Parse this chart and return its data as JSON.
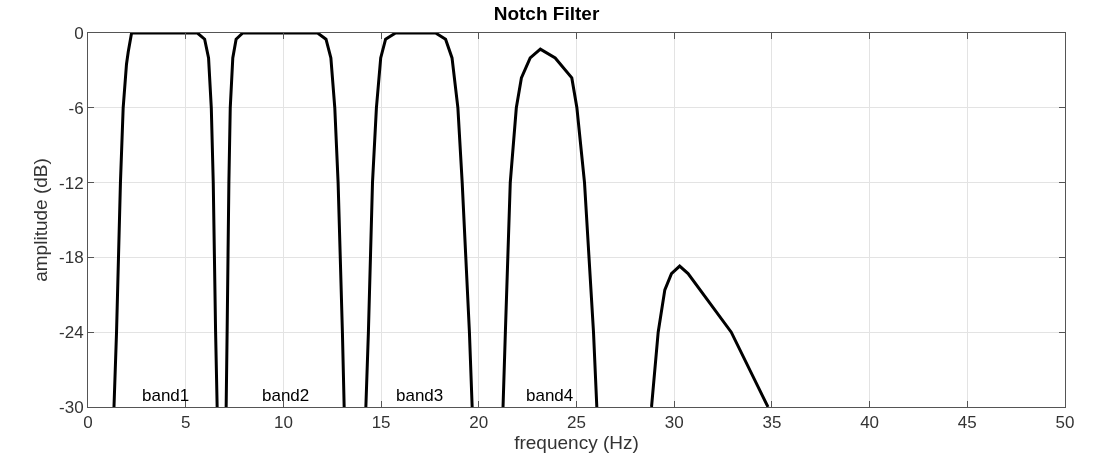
{
  "chart_data": {
    "type": "line",
    "title": "Notch Filter",
    "xlabel": "frequency (Hz)",
    "ylabel": "amplitude (dB)",
    "xlim": [
      0,
      50
    ],
    "xticks": [
      0,
      5,
      10,
      15,
      20,
      25,
      30,
      35,
      40,
      45,
      50
    ],
    "ylim": [
      -30,
      0
    ],
    "yticks": [
      -30,
      -24,
      -18,
      -12,
      -6,
      0
    ],
    "grid": true,
    "marker": "none",
    "line_style": "solid",
    "series": [
      {
        "color": "#000000",
        "x": [
          1.33,
          1.46,
          1.66,
          1.8,
          1.97,
          2.06,
          2.23,
          2.4,
          3.0,
          4.0,
          5.0,
          5.6,
          5.97,
          6.17,
          6.31,
          6.41,
          6.53,
          6.61
        ],
        "values": [
          -30,
          -24,
          -12,
          -6,
          -2.5,
          -1.5,
          0,
          0,
          0,
          0,
          0,
          0,
          -0.5,
          -2,
          -6,
          -12,
          -24,
          -30
        ]
      },
      {
        "color": "#000000",
        "x": [
          7.07,
          7.12,
          7.21,
          7.28,
          7.41,
          7.58,
          7.92,
          9.0,
          10.0,
          11.0,
          11.75,
          12.18,
          12.43,
          12.63,
          12.8,
          13.02,
          13.11
        ],
        "values": [
          -30,
          -24,
          -12,
          -6,
          -2,
          -0.5,
          0,
          0,
          0,
          0,
          0,
          -0.5,
          -2,
          -6,
          -12,
          -24,
          -30
        ]
      },
      {
        "color": "#000000",
        "x": [
          14.22,
          14.35,
          14.56,
          14.76,
          14.98,
          15.23,
          15.74,
          16.5,
          17.0,
          17.79,
          18.3,
          18.63,
          18.93,
          19.15,
          19.52,
          19.66
        ],
        "values": [
          -30,
          -24,
          -12,
          -6,
          -2,
          -0.5,
          0,
          0,
          0,
          0,
          -0.5,
          -2,
          -6,
          -12,
          -24,
          -30
        ]
      },
      {
        "color": "#000000",
        "x": [
          21.24,
          21.36,
          21.61,
          21.92,
          22.18,
          22.63,
          23.15,
          23.91,
          24.76,
          25.02,
          25.41,
          25.87,
          26.04
        ],
        "values": [
          -30,
          -24,
          -12,
          -6,
          -3.6,
          -2,
          -1.3,
          -2,
          -3.6,
          -6,
          -12,
          -24,
          -30
        ]
      },
      {
        "color": "#000000",
        "x": [
          28.84,
          29.18,
          29.52,
          29.86,
          30.28,
          30.71,
          32.92,
          34.8
        ],
        "values": [
          -30,
          -24,
          -20.6,
          -19.3,
          -18.7,
          -19.3,
          -24,
          -30
        ]
      }
    ],
    "annotations": [
      "band1",
      "band2",
      "band3",
      "band4"
    ]
  }
}
